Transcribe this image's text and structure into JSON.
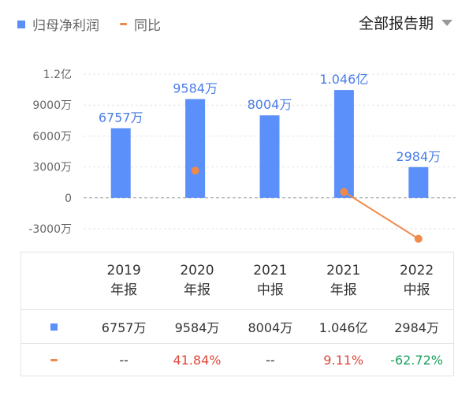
{
  "legend": {
    "bar_label": "归母净利润",
    "line_label": "同比",
    "bar_color": "#5b8ff9",
    "line_color": "#f08a4b"
  },
  "period_selector": {
    "label": "全部报告期",
    "icon": "chevron-down-icon"
  },
  "chart_data": {
    "type": "bar",
    "categories": [
      "2019年报",
      "2020年报",
      "2021中报",
      "2021年报",
      "2022中报"
    ],
    "series": [
      {
        "name": "归母净利润",
        "type": "bar",
        "values": [
          6757,
          9584,
          8004,
          10460,
          2984
        ],
        "unit": "万",
        "color": "#5b8ff9",
        "labels": [
          "6757万",
          "9584万",
          "8004万",
          "1.046亿",
          "2984万"
        ]
      },
      {
        "name": "同比",
        "type": "line",
        "values": [
          null,
          41.84,
          null,
          9.11,
          -62.72
        ],
        "unit": "%",
        "color": "#f08a4b"
      }
    ],
    "y_ticks": [
      {
        "value": 12000,
        "label": "1.2亿"
      },
      {
        "value": 9000,
        "label": "9000万"
      },
      {
        "value": 6000,
        "label": "6000万"
      },
      {
        "value": 3000,
        "label": "3000万"
      },
      {
        "value": 0,
        "label": "0"
      },
      {
        "value": -3000,
        "label": "-3000万"
      }
    ],
    "ylim": [
      -3000,
      12000
    ],
    "grid": true
  },
  "table": {
    "headers": [
      {
        "year": "2019",
        "type": "年报"
      },
      {
        "year": "2020",
        "type": "年报"
      },
      {
        "year": "2021",
        "type": "中报"
      },
      {
        "year": "2021",
        "type": "年报"
      },
      {
        "year": "2022",
        "type": "中报"
      }
    ],
    "profit_row": [
      "6757万",
      "9584万",
      "8004万",
      "1.046亿",
      "2984万"
    ],
    "yoy_row": [
      {
        "text": "--",
        "color": "#333333"
      },
      {
        "text": "41.84%",
        "color": "#e0483d"
      },
      {
        "text": "--",
        "color": "#333333"
      },
      {
        "text": "9.11%",
        "color": "#e0483d"
      },
      {
        "text": "-62.72%",
        "color": "#19a15f"
      }
    ]
  }
}
